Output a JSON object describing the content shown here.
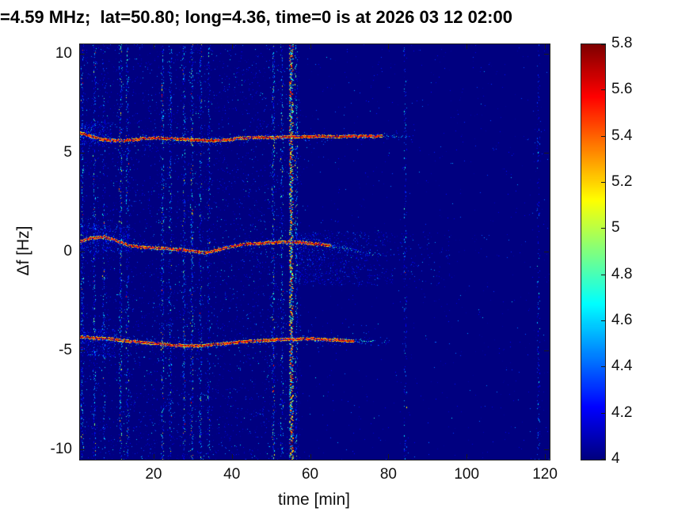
{
  "chart_data": {
    "type": "heatmap",
    "subtype": "doppler-spectrogram",
    "title": "=4.59 MHz;  lat=50.80; long=4.36, time=0 is at 2026 03 12 02:00",
    "xlabel": "time [min]",
    "ylabel": "Δf [Hz]",
    "xlim": [
      1,
      121
    ],
    "ylim": [
      -10.5,
      10.5
    ],
    "xticks": [
      20,
      40,
      60,
      80,
      100,
      120
    ],
    "yticks": [
      -10,
      -5,
      0,
      5,
      10
    ],
    "grid": false,
    "colormap": "jet",
    "background_value": 4,
    "colorbar": {
      "position": "right",
      "min": 4,
      "max": 5.8,
      "ticks": [
        4,
        4.2,
        4.4,
        4.6,
        4.8,
        5,
        5.2,
        5.4,
        5.6,
        5.8
      ]
    },
    "doppler_traces": [
      {
        "name": "upper-doppler-trace",
        "points": [
          [
            1,
            6.0
          ],
          [
            3,
            5.9
          ],
          [
            6,
            5.7
          ],
          [
            10,
            5.62
          ],
          [
            14,
            5.65
          ],
          [
            18,
            5.75
          ],
          [
            22,
            5.75
          ],
          [
            26,
            5.7
          ],
          [
            30,
            5.68
          ],
          [
            34,
            5.62
          ],
          [
            38,
            5.66
          ],
          [
            42,
            5.75
          ],
          [
            46,
            5.8
          ],
          [
            50,
            5.78
          ],
          [
            54,
            5.82
          ],
          [
            58,
            5.82
          ],
          [
            62,
            5.85
          ],
          [
            66,
            5.83
          ],
          [
            70,
            5.85
          ],
          [
            76,
            5.85
          ]
        ],
        "fade_start": 72,
        "end": 86
      },
      {
        "name": "middle-doppler-trace",
        "points": [
          [
            1,
            0.55
          ],
          [
            4,
            0.7
          ],
          [
            7,
            0.75
          ],
          [
            10,
            0.6
          ],
          [
            13,
            0.35
          ],
          [
            16,
            0.25
          ],
          [
            20,
            0.2
          ],
          [
            24,
            0.15
          ],
          [
            28,
            0.1
          ],
          [
            31,
            0.0
          ],
          [
            33,
            -0.05
          ],
          [
            36,
            0.1
          ],
          [
            40,
            0.3
          ],
          [
            44,
            0.4
          ],
          [
            48,
            0.45
          ],
          [
            52,
            0.5
          ],
          [
            56,
            0.5
          ],
          [
            62,
            0.4
          ],
          [
            68,
            0.2
          ],
          [
            74,
            0.0
          ],
          [
            78,
            -0.15
          ],
          [
            80,
            -0.25
          ]
        ],
        "fade_start": 55,
        "end": 78
      },
      {
        "name": "lower-doppler-trace",
        "points": [
          [
            1,
            -4.3
          ],
          [
            5,
            -4.35
          ],
          [
            9,
            -4.4
          ],
          [
            13,
            -4.5
          ],
          [
            17,
            -4.58
          ],
          [
            21,
            -4.65
          ],
          [
            25,
            -4.72
          ],
          [
            29,
            -4.75
          ],
          [
            33,
            -4.72
          ],
          [
            37,
            -4.65
          ],
          [
            41,
            -4.58
          ],
          [
            45,
            -4.5
          ],
          [
            49,
            -4.47
          ],
          [
            53,
            -4.42
          ],
          [
            57,
            -4.4
          ],
          [
            61,
            -4.4
          ],
          [
            65,
            -4.44
          ],
          [
            70,
            -4.5
          ]
        ],
        "fade_start": 64,
        "end": 80
      }
    ],
    "interference_stripes": [
      {
        "t": 1.5,
        "strength": 0.5
      },
      {
        "t": 4.6,
        "strength": 0.55
      },
      {
        "t": 7.0,
        "strength": 0.35
      },
      {
        "t": 11.3,
        "strength": 0.7
      },
      {
        "t": 13.0,
        "strength": 0.4
      },
      {
        "t": 22.0,
        "strength": 0.75
      },
      {
        "t": 24.0,
        "strength": 0.45
      },
      {
        "t": 27.5,
        "strength": 0.6
      },
      {
        "t": 29.5,
        "strength": 0.75
      },
      {
        "t": 31.7,
        "strength": 0.5
      },
      {
        "t": 33.8,
        "strength": 0.3
      },
      {
        "t": 50.3,
        "strength": 0.7
      },
      {
        "t": 52.5,
        "strength": 0.5
      },
      {
        "t": 54.8,
        "strength": 1.0
      },
      {
        "t": 56.2,
        "strength": 0.6
      },
      {
        "t": 84.0,
        "strength": 0.15
      },
      {
        "t": 118.0,
        "strength": 0.18
      }
    ],
    "diffuse_clouds": [
      {
        "t_range": [
          56,
          96
        ],
        "f_range": [
          -1.7,
          1.05
        ],
        "dots": 2400,
        "decay": true
      },
      {
        "t_range": [
          1,
          14
        ],
        "f_range": [
          0.0,
          1.4
        ],
        "dots": 450,
        "decay": false
      },
      {
        "t_range": [
          1,
          9
        ],
        "f_range": [
          5.4,
          6.6
        ],
        "dots": 300,
        "decay": false
      },
      {
        "t_range": [
          1,
          10
        ],
        "f_range": [
          -5.3,
          -3.9
        ],
        "dots": 300,
        "decay": false
      }
    ]
  }
}
